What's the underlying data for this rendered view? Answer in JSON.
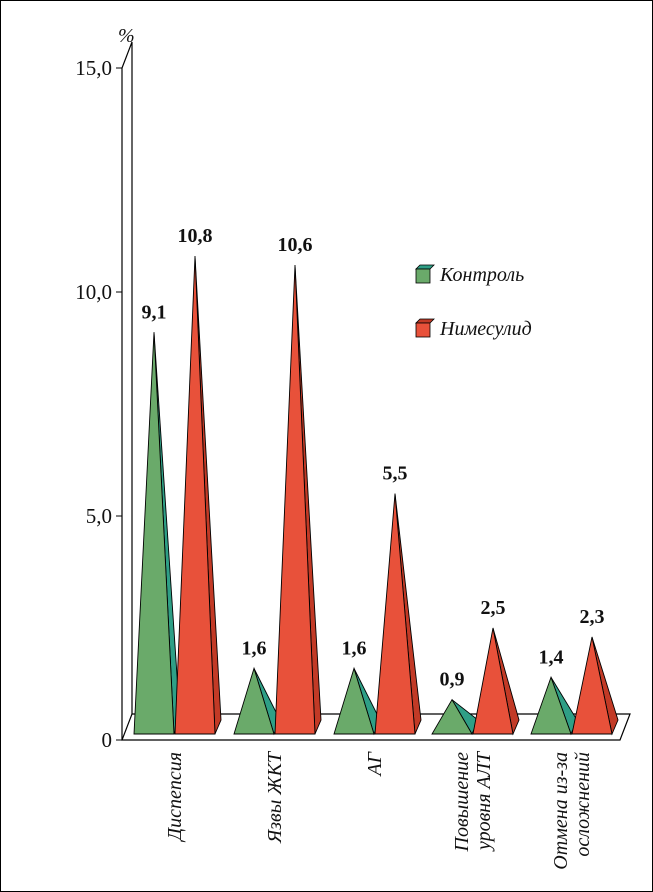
{
  "chart_data": {
    "type": "bar",
    "style": "3d-pyramid",
    "unit_label": "%",
    "categories": [
      [
        "Диспепсия"
      ],
      [
        "Язвы ЖКТ"
      ],
      [
        "АГ"
      ],
      [
        "Повышение",
        "уровня АЛТ"
      ],
      [
        "Отмена из-за",
        "осложнений"
      ]
    ],
    "series": [
      {
        "name": "Контроль",
        "values": [
          9.1,
          1.6,
          1.6,
          0.9,
          1.4
        ],
        "labels": [
          "9,1",
          "1,6",
          "1,6",
          "0,9",
          "1,4"
        ],
        "color": "#6aaa6a",
        "side_color": "#2f9f86"
      },
      {
        "name": "Нимесулид",
        "values": [
          10.8,
          10.6,
          5.5,
          2.5,
          2.3
        ],
        "labels": [
          "10,8",
          "10,6",
          "5,5",
          "2,5",
          "2,3"
        ],
        "color": "#e8513a",
        "side_color": "#c23a26"
      }
    ],
    "ylim": [
      0,
      15
    ],
    "y_ticks": [
      0,
      5,
      10,
      15
    ],
    "y_tick_labels": [
      "0",
      "5,0",
      "10,0",
      "15,0"
    ],
    "grid": false,
    "legend_position": "right-middle"
  }
}
